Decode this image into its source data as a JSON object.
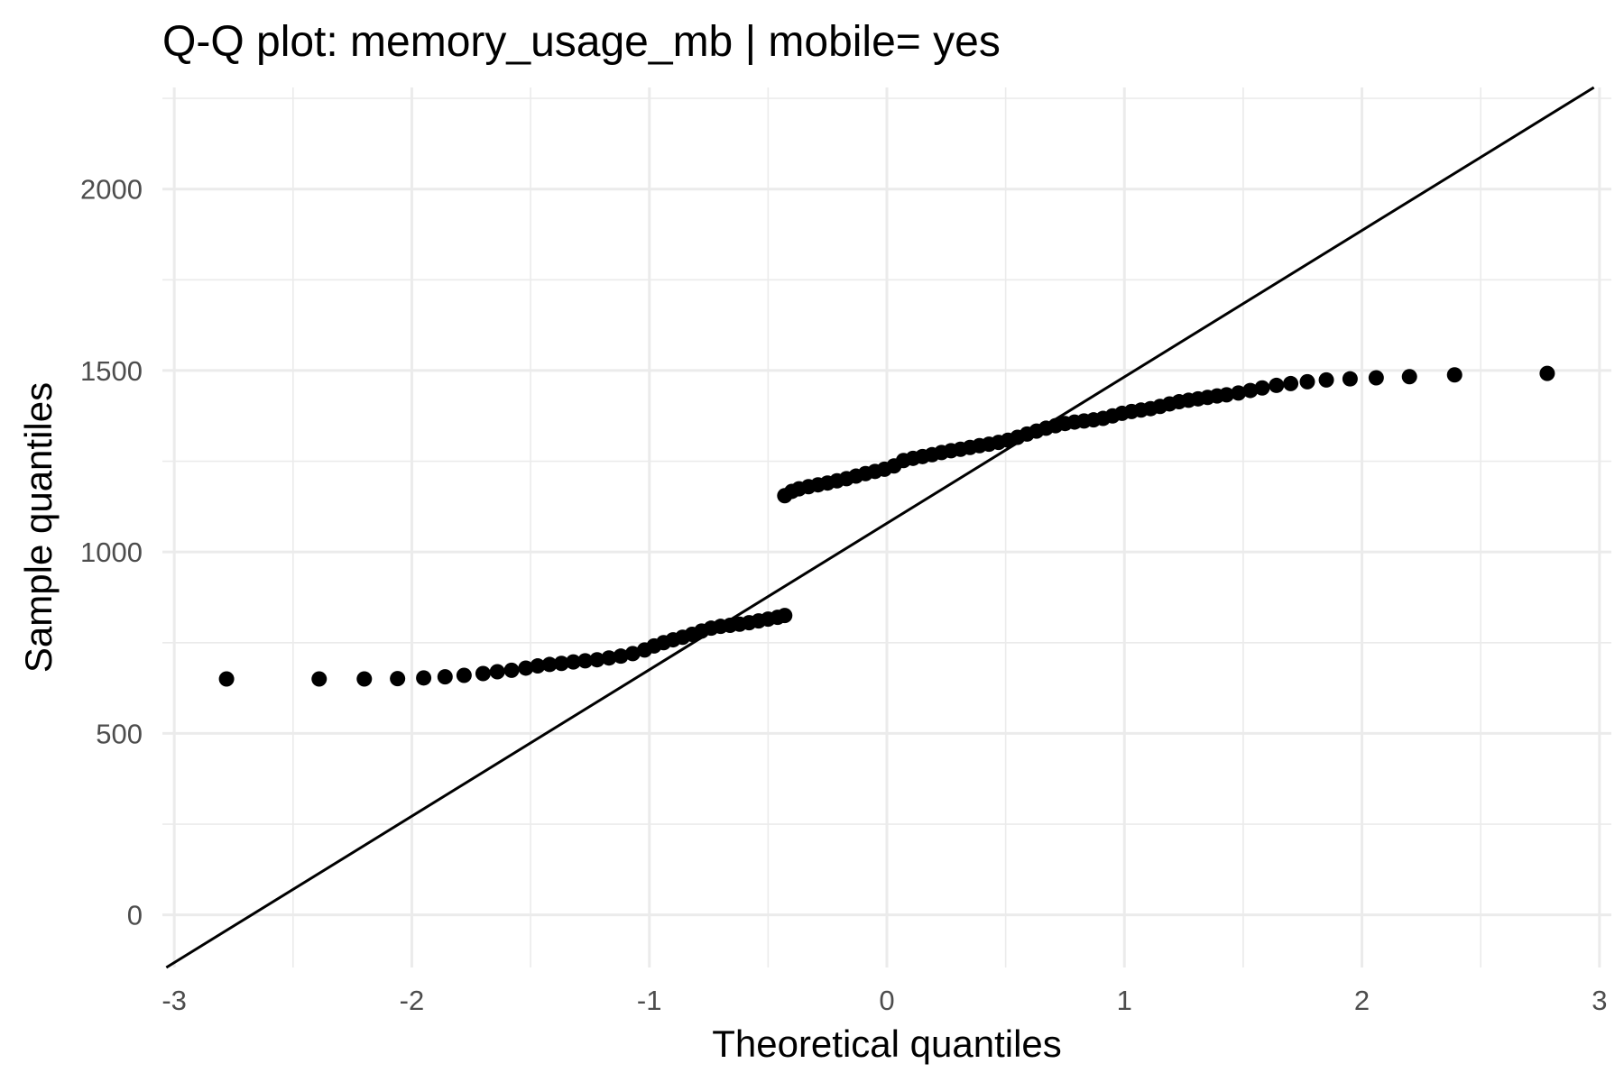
{
  "chart_data": {
    "type": "scatter",
    "title": "Q-Q plot: memory_usage_mb | mobile= yes",
    "xlabel": "Theoretical quantiles",
    "ylabel": "Sample quantiles",
    "xlim": [
      -3.05,
      3.05
    ],
    "ylim": [
      -145,
      2280
    ],
    "x_ticks": [
      {
        "value": -3,
        "label": "-3"
      },
      {
        "value": -2,
        "label": "-2"
      },
      {
        "value": -1,
        "label": "-1"
      },
      {
        "value": 0,
        "label": "0"
      },
      {
        "value": 1,
        "label": "1"
      },
      {
        "value": 2,
        "label": "2"
      },
      {
        "value": 3,
        "label": "3"
      }
    ],
    "y_ticks": [
      {
        "value": 0,
        "label": "0"
      },
      {
        "value": 500,
        "label": "500"
      },
      {
        "value": 1000,
        "label": "1000"
      },
      {
        "value": 1500,
        "label": "1500"
      },
      {
        "value": 2000,
        "label": "2000"
      }
    ],
    "grid": true,
    "reference_line": {
      "intercept": 1079,
      "slope": 403.5
    },
    "series": [
      {
        "points": [
          [
            -2.78,
            650
          ],
          [
            -2.39,
            650
          ],
          [
            -2.2,
            650
          ],
          [
            -2.06,
            651
          ],
          [
            -1.95,
            653
          ],
          [
            -1.86,
            656
          ],
          [
            -1.78,
            660
          ],
          [
            -1.7,
            665
          ],
          [
            -1.64,
            670
          ],
          [
            -1.58,
            674
          ],
          [
            -1.52,
            680
          ],
          [
            -1.47,
            686
          ],
          [
            -1.42,
            690
          ],
          [
            -1.37,
            693
          ],
          [
            -1.32,
            697
          ],
          [
            -1.27,
            700
          ],
          [
            -1.22,
            703
          ],
          [
            -1.17,
            708
          ],
          [
            -1.12,
            713
          ],
          [
            -1.07,
            720
          ],
          [
            -1.02,
            730
          ],
          [
            -0.98,
            741
          ],
          [
            -0.94,
            750
          ],
          [
            -0.9,
            758
          ],
          [
            -0.86,
            765
          ],
          [
            -0.82,
            773
          ],
          [
            -0.78,
            782
          ],
          [
            -0.74,
            790
          ],
          [
            -0.7,
            795
          ],
          [
            -0.66,
            798
          ],
          [
            -0.62,
            801
          ],
          [
            -0.58,
            805
          ],
          [
            -0.54,
            810
          ],
          [
            -0.5,
            815
          ],
          [
            -0.46,
            820
          ],
          [
            -0.43,
            825
          ],
          [
            -0.43,
            1155
          ],
          [
            -0.4,
            1167
          ],
          [
            -0.37,
            1174
          ],
          [
            -0.33,
            1180
          ],
          [
            -0.29,
            1185
          ],
          [
            -0.25,
            1190
          ],
          [
            -0.21,
            1196
          ],
          [
            -0.17,
            1202
          ],
          [
            -0.13,
            1209
          ],
          [
            -0.09,
            1216
          ],
          [
            -0.05,
            1222
          ],
          [
            -0.01,
            1228
          ],
          [
            0.03,
            1237
          ],
          [
            0.07,
            1252
          ],
          [
            0.11,
            1258
          ],
          [
            0.15,
            1263
          ],
          [
            0.19,
            1268
          ],
          [
            0.23,
            1274
          ],
          [
            0.27,
            1279
          ],
          [
            0.31,
            1283
          ],
          [
            0.35,
            1288
          ],
          [
            0.39,
            1293
          ],
          [
            0.43,
            1297
          ],
          [
            0.47,
            1302
          ],
          [
            0.51,
            1308
          ],
          [
            0.55,
            1316
          ],
          [
            0.59,
            1325
          ],
          [
            0.63,
            1333
          ],
          [
            0.67,
            1341
          ],
          [
            0.71,
            1348
          ],
          [
            0.75,
            1354
          ],
          [
            0.79,
            1358
          ],
          [
            0.83,
            1361
          ],
          [
            0.87,
            1364
          ],
          [
            0.91,
            1368
          ],
          [
            0.95,
            1375
          ],
          [
            0.99,
            1382
          ],
          [
            1.03,
            1387
          ],
          [
            1.07,
            1391
          ],
          [
            1.11,
            1395
          ],
          [
            1.15,
            1401
          ],
          [
            1.19,
            1408
          ],
          [
            1.23,
            1414
          ],
          [
            1.27,
            1418
          ],
          [
            1.31,
            1422
          ],
          [
            1.35,
            1426
          ],
          [
            1.39,
            1430
          ],
          [
            1.43,
            1433
          ],
          [
            1.48,
            1438
          ],
          [
            1.53,
            1445
          ],
          [
            1.58,
            1452
          ],
          [
            1.64,
            1459
          ],
          [
            1.7,
            1464
          ],
          [
            1.77,
            1469
          ],
          [
            1.85,
            1474
          ],
          [
            1.95,
            1477
          ],
          [
            2.06,
            1480
          ],
          [
            2.2,
            1483
          ],
          [
            2.39,
            1488
          ],
          [
            2.78,
            1492
          ]
        ]
      }
    ]
  }
}
